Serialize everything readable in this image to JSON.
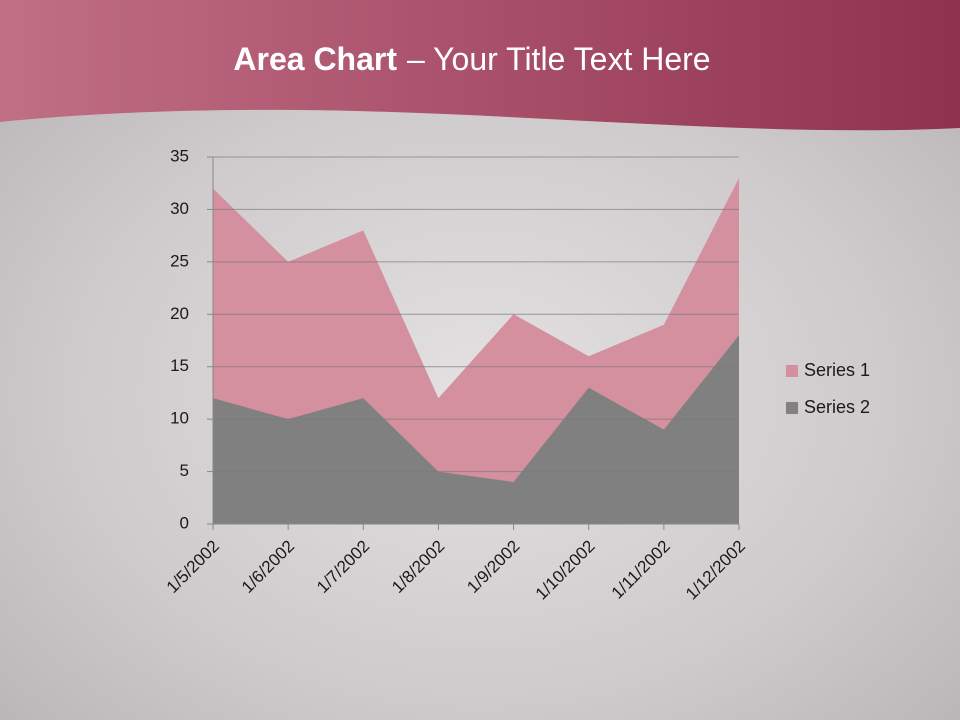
{
  "chart_data": {
    "type": "area",
    "title": [
      "Area Chart",
      "– Your Title Text Here"
    ],
    "categories": [
      "1/5/2002",
      "1/6/2002",
      "1/7/2002",
      "1/8/2002",
      "1/9/2002",
      "1/10/2002",
      "1/11/2002",
      "1/12/2002"
    ],
    "series": [
      {
        "name": "Series 1",
        "color": "#d4909f",
        "values": [
          32,
          25,
          28,
          12,
          20,
          16,
          19,
          33
        ]
      },
      {
        "name": "Series 2",
        "color": "#808080",
        "values": [
          12,
          10,
          12,
          5,
          4,
          13,
          9,
          18
        ]
      }
    ],
    "ylim": [
      0,
      35
    ],
    "yticks": [
      0,
      5,
      10,
      15,
      20,
      25,
      30,
      35
    ],
    "grid": true,
    "legend": "right"
  }
}
